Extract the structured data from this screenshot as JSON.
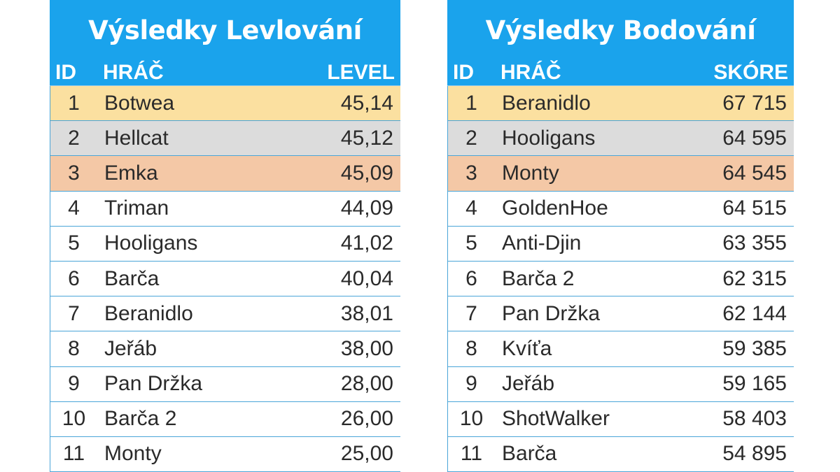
{
  "colors": {
    "header_bg": "#1aa3ec",
    "gold": "#fbe0a0",
    "silver": "#dcdcdc",
    "bronze": "#f4c8a6",
    "row_border": "#4aa5d8"
  },
  "tables": [
    {
      "title": "Výsledky Levlování",
      "headers": {
        "id": "ID",
        "player": "HRÁČ",
        "value": "LEVEL"
      },
      "rows": [
        {
          "id": "1",
          "player": "Botwea",
          "value": "45,14"
        },
        {
          "id": "2",
          "player": "Hellcat",
          "value": "45,12"
        },
        {
          "id": "3",
          "player": "Emka",
          "value": "45,09"
        },
        {
          "id": "4",
          "player": "Triman",
          "value": "44,09"
        },
        {
          "id": "5",
          "player": "Hooligans",
          "value": "41,02"
        },
        {
          "id": "6",
          "player": "Barča",
          "value": "40,04"
        },
        {
          "id": "7",
          "player": "Beranidlo",
          "value": "38,01"
        },
        {
          "id": "8",
          "player": "Jeřáb",
          "value": "38,00"
        },
        {
          "id": "9",
          "player": "Pan Držka",
          "value": "28,00"
        },
        {
          "id": "10",
          "player": "Barča 2",
          "value": "26,00"
        },
        {
          "id": "11",
          "player": "Monty",
          "value": "25,00"
        }
      ]
    },
    {
      "title": "Výsledky Bodování",
      "headers": {
        "id": "ID",
        "player": "HRÁČ",
        "value": "SKÓRE"
      },
      "rows": [
        {
          "id": "1",
          "player": "Beranidlo",
          "value": "67 715"
        },
        {
          "id": "2",
          "player": "Hooligans",
          "value": "64 595"
        },
        {
          "id": "3",
          "player": "Monty",
          "value": "64 545"
        },
        {
          "id": "4",
          "player": "GoldenHoe",
          "value": "64 515"
        },
        {
          "id": "5",
          "player": "Anti-Djin",
          "value": "63 355"
        },
        {
          "id": "6",
          "player": "Barča 2",
          "value": "62 315"
        },
        {
          "id": "7",
          "player": "Pan Držka",
          "value": "62 144"
        },
        {
          "id": "8",
          "player": "Kvíťa",
          "value": "59 385"
        },
        {
          "id": "9",
          "player": "Jeřáb",
          "value": "59 165"
        },
        {
          "id": "10",
          "player": "ShotWalker",
          "value": "58 403"
        },
        {
          "id": "11",
          "player": "Barča",
          "value": "54 895"
        }
      ]
    }
  ]
}
